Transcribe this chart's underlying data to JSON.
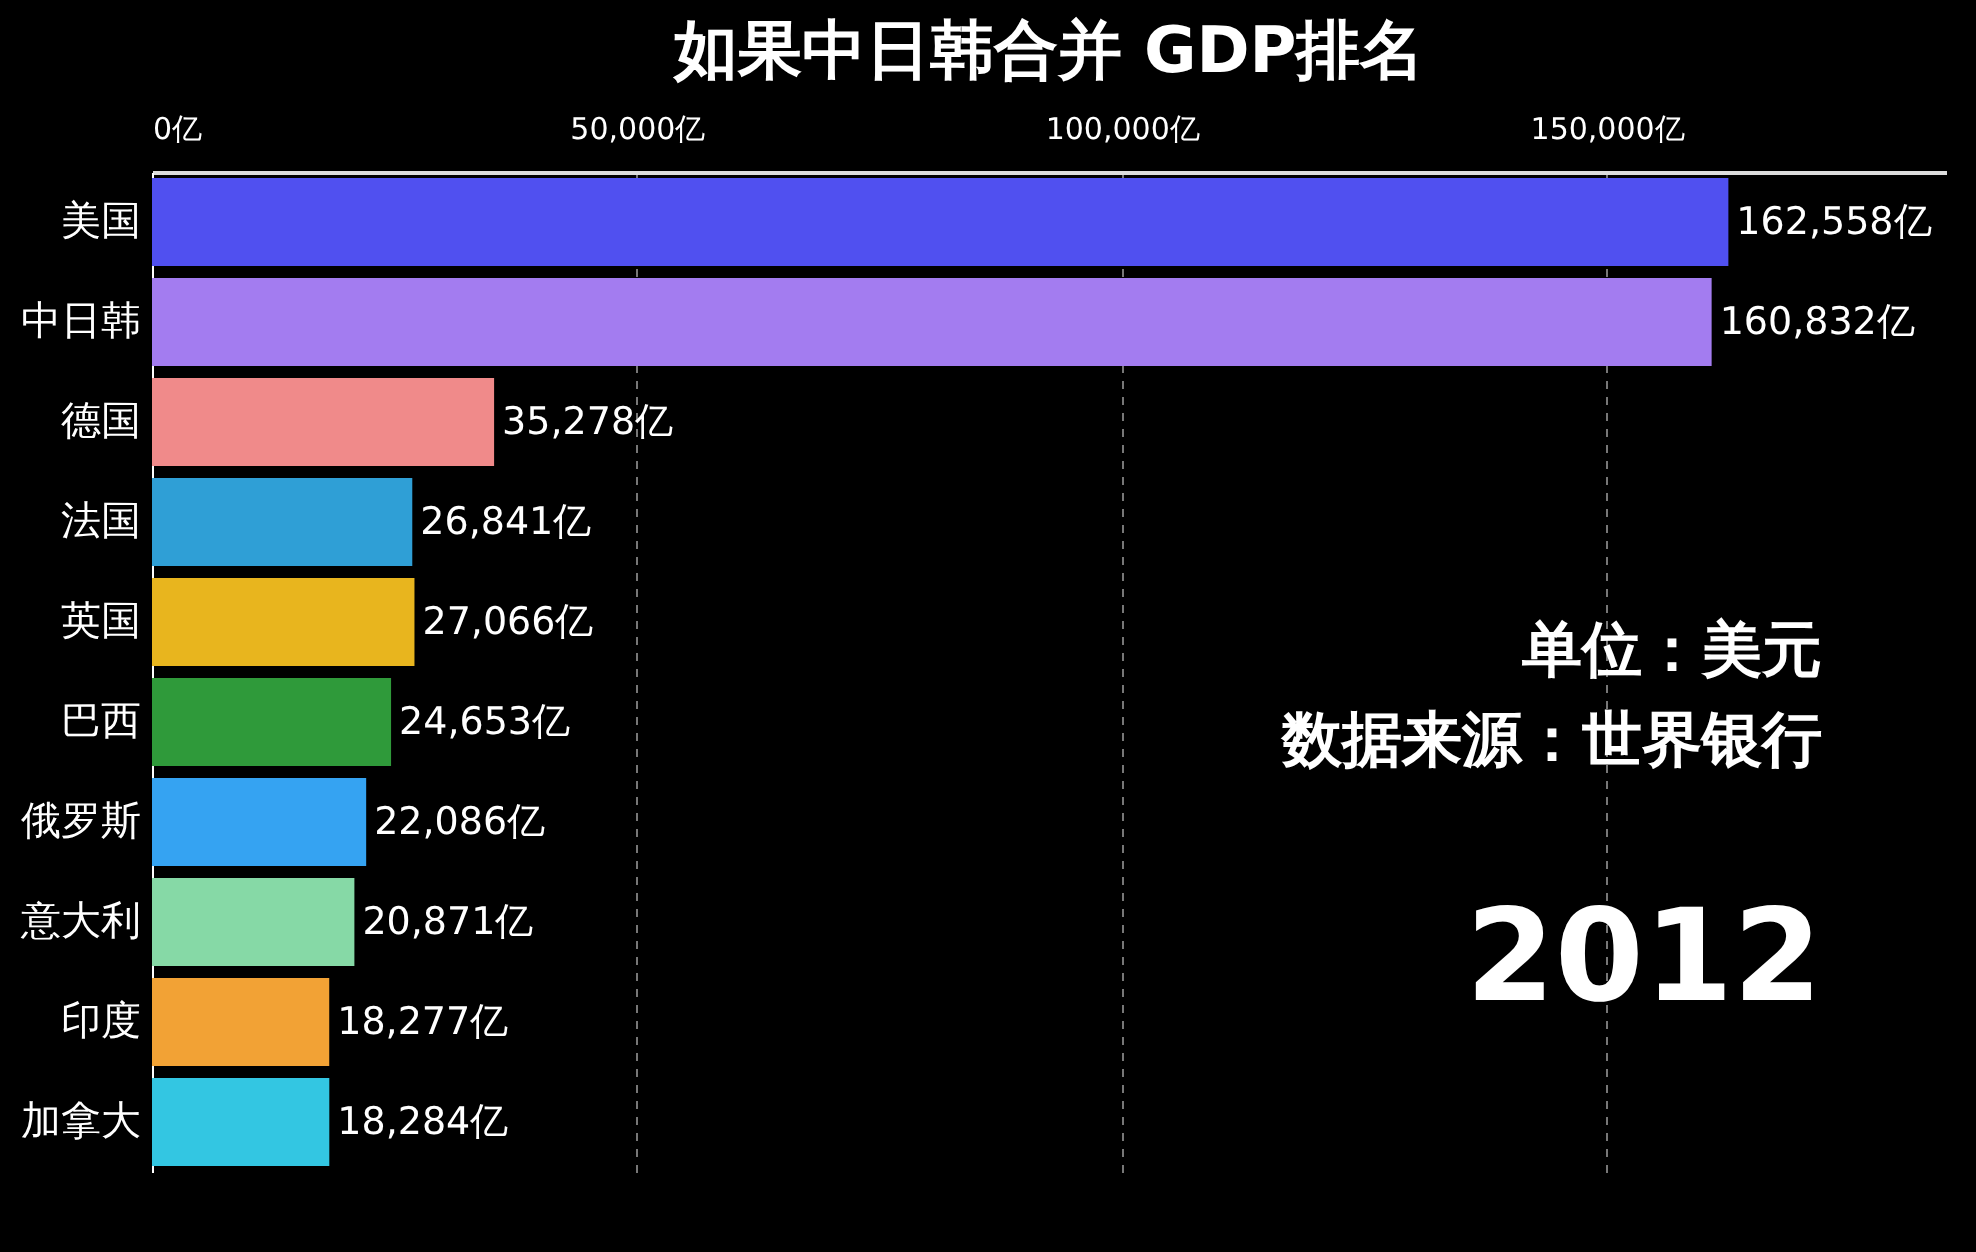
{
  "chart_data": {
    "type": "bar",
    "orientation": "horizontal",
    "title": "如果中日韩合并 GDP排名",
    "categories": [
      "美国",
      "中日韩",
      "德国",
      "法国",
      "英国",
      "巴西",
      "俄罗斯",
      "意大利",
      "印度",
      "加拿大"
    ],
    "values": [
      162558,
      160832,
      35278,
      26841,
      27066,
      24653,
      22086,
      20871,
      18277,
      18284
    ],
    "colors": [
      "#5050f0",
      "#a37cf0",
      "#f08a8a",
      "#2f9fd6",
      "#e8b51e",
      "#2f9a3a",
      "#35a3f2",
      "#86d9a6",
      "#f2a235",
      "#33c6e2"
    ],
    "value_labels": [
      "162,558亿",
      "160,832亿",
      "35,278亿",
      "26,841亿",
      "27,066亿",
      "24,653亿",
      "22,086亿",
      "20,871亿",
      "18,277亿",
      "18,284亿"
    ],
    "xticks": [
      {
        "value": 0,
        "label": "0亿"
      },
      {
        "value": 50000,
        "label": "50,000亿"
      },
      {
        "value": 100000,
        "label": "100,000亿"
      },
      {
        "value": 150000,
        "label": "150,000亿"
      }
    ],
    "xlim": [
      0,
      185000
    ],
    "grid": "x",
    "legend": false,
    "annotations": [
      "单位：美元",
      "数据来源：世界银行",
      "2012"
    ]
  }
}
